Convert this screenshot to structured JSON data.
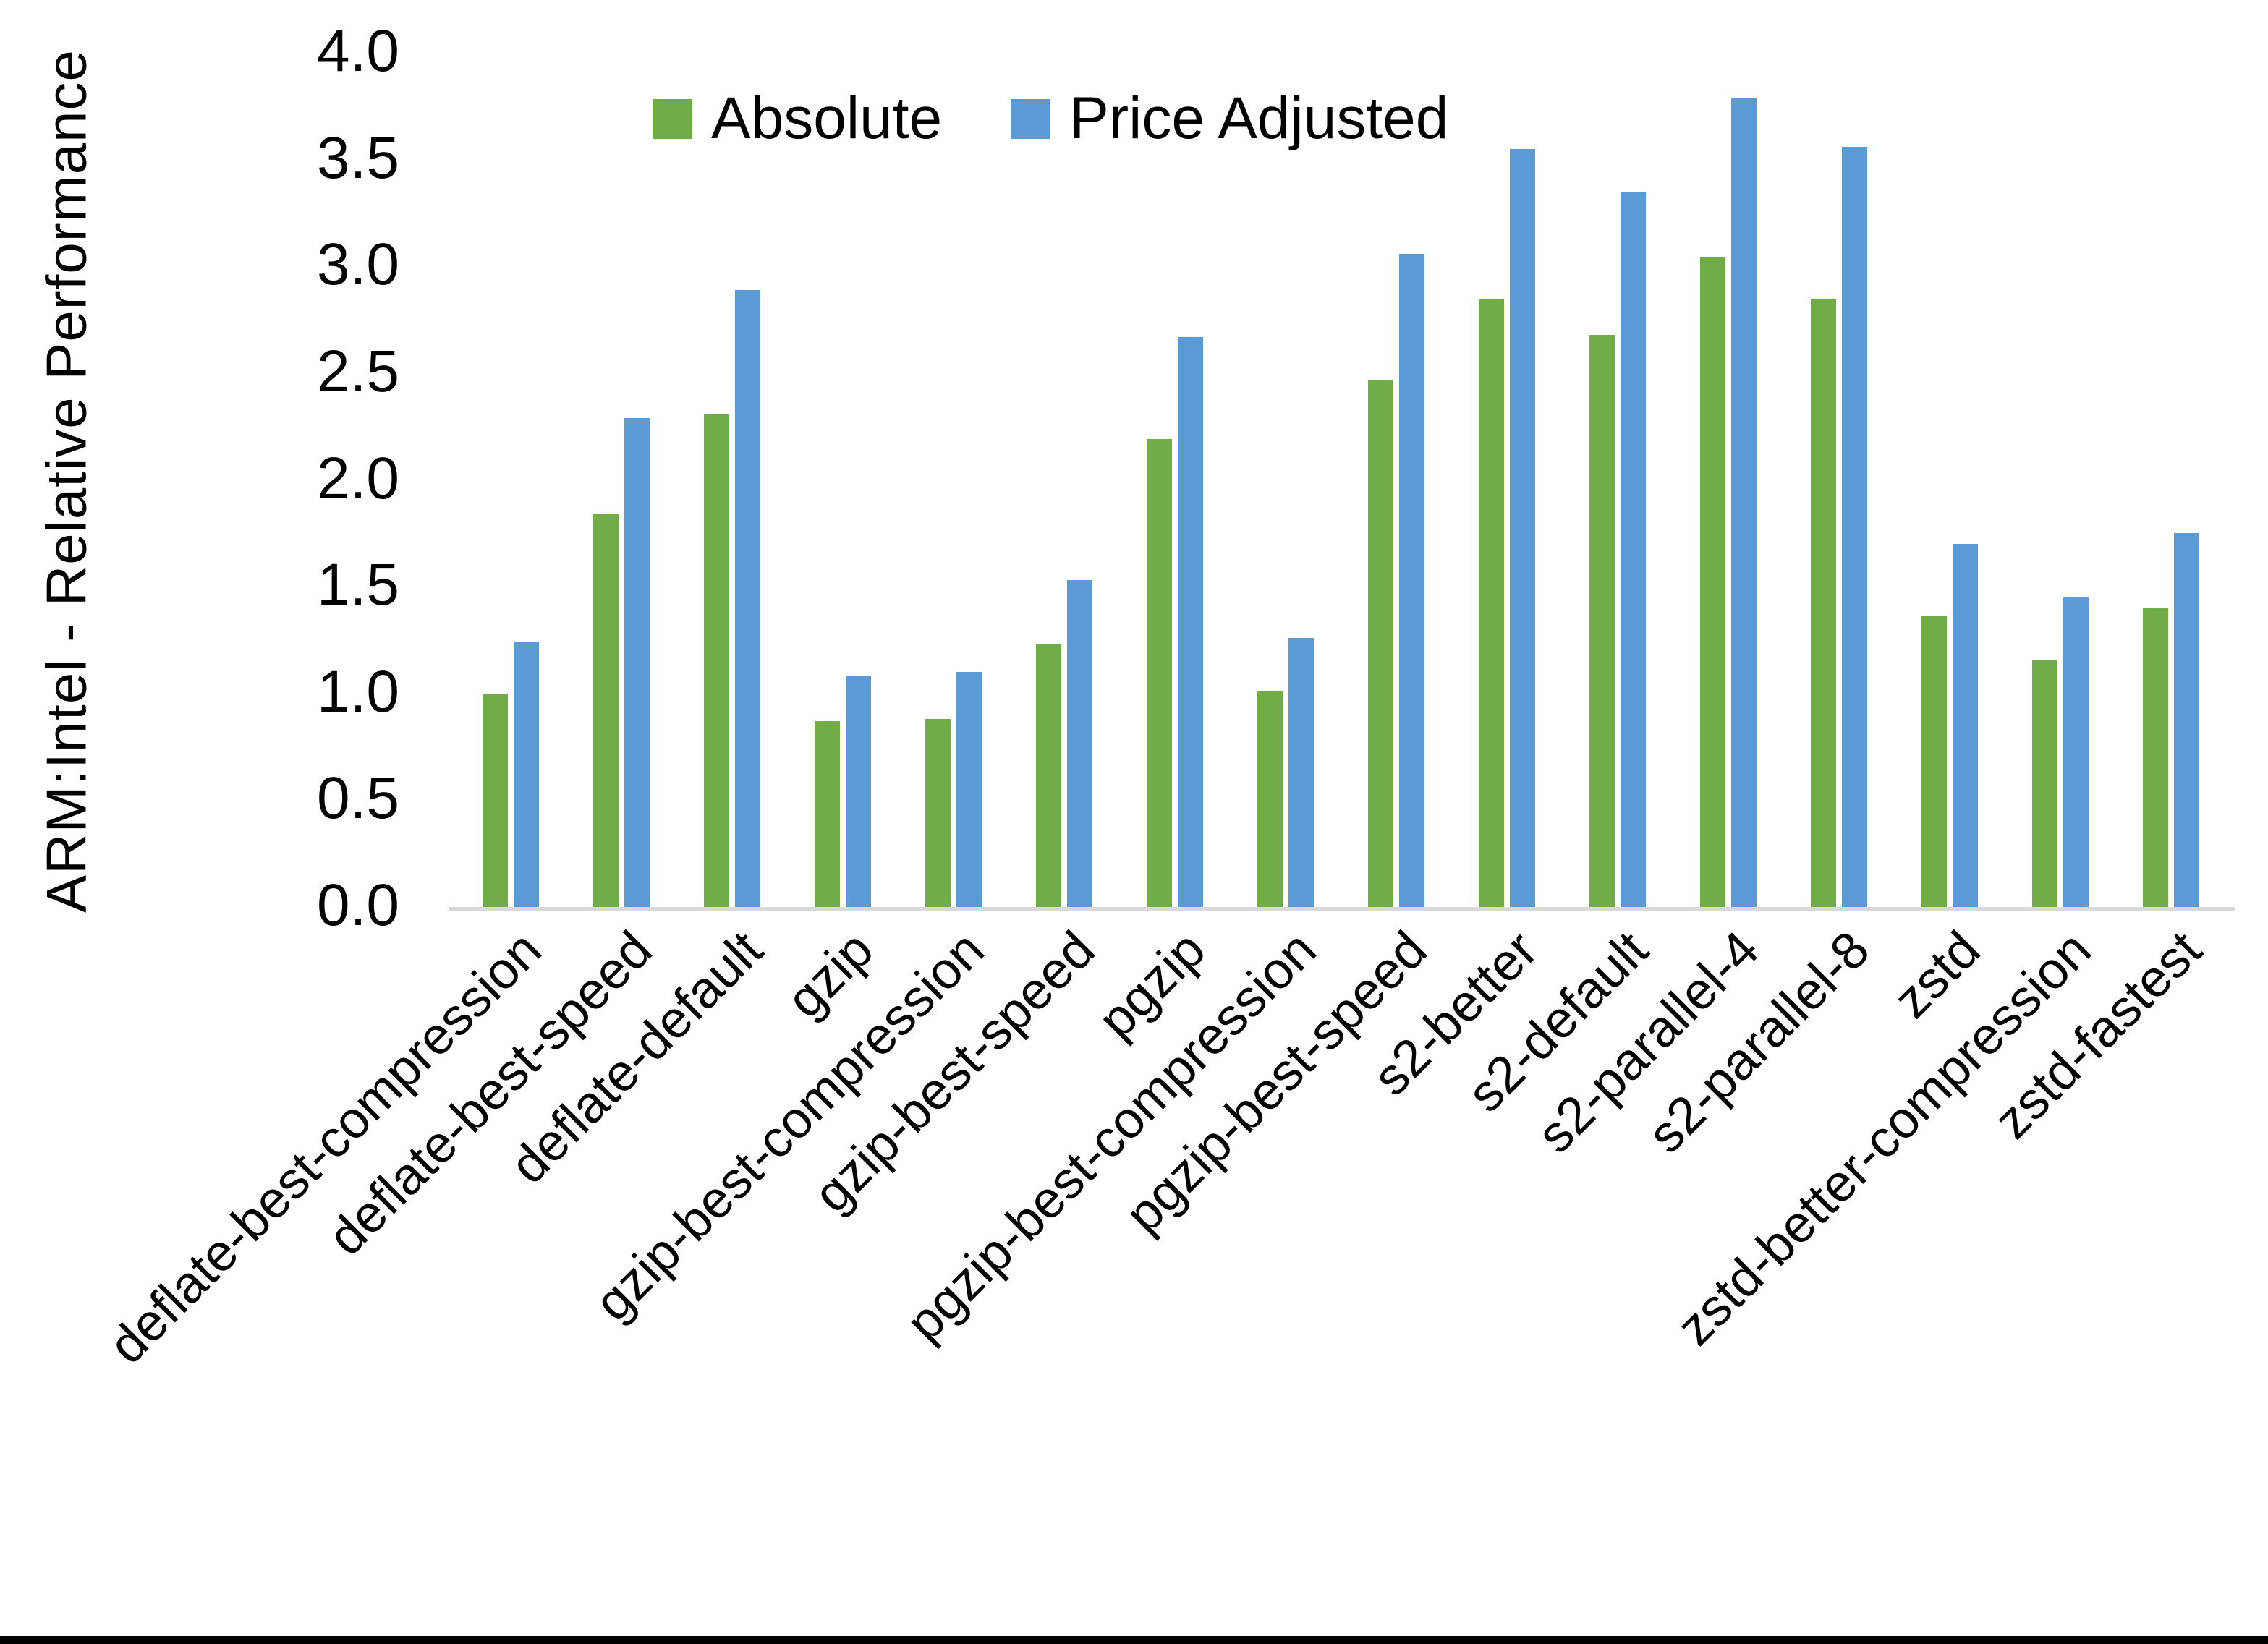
{
  "page": {
    "background": "#ffffff",
    "bottom_border_color": "#000000",
    "axis_line_color": "#d9d9d9"
  },
  "y_axis": {
    "title": "ARM:Intel - Relative Performance",
    "tick_labels": [
      "0.0",
      "0.5",
      "1.0",
      "1.5",
      "2.0",
      "2.5",
      "3.0",
      "3.5",
      "4.0"
    ]
  },
  "legend": {
    "items": [
      {
        "label": "Absolute",
        "color": "#70AD47"
      },
      {
        "label": "Price Adjusted",
        "color": "#5B9BD5"
      }
    ]
  },
  "chart_data": {
    "type": "bar",
    "title": "",
    "xlabel": "",
    "ylabel": "ARM:Intel - Relative Performance",
    "ylim": [
      0,
      4
    ],
    "ytick_step": 0.5,
    "grid": false,
    "legend_position": "top-center",
    "categories": [
      "deflate-best-compression",
      "deflate-best-speed",
      "deflate-default",
      "gzip",
      "gzip-best-compression",
      "gzip-best-speed",
      "pgzip",
      "pgzip-best-compression",
      "pgzip-best-speed",
      "s2-better",
      "s2-default",
      "s2-parallel-4",
      "s2-parallel-8",
      "zstd",
      "zstd-better-compression",
      "zstd-fastest"
    ],
    "series": [
      {
        "name": "Absolute",
        "color": "#70AD47",
        "values": [
          1.0,
          1.84,
          2.31,
          0.87,
          0.88,
          1.23,
          2.19,
          1.01,
          2.47,
          2.85,
          2.68,
          3.04,
          2.85,
          1.36,
          1.16,
          1.4
        ]
      },
      {
        "name": "Price Adjusted",
        "color": "#5B9BD5",
        "values": [
          1.24,
          2.29,
          2.89,
          1.08,
          1.1,
          1.53,
          2.67,
          1.26,
          3.06,
          3.55,
          3.35,
          3.79,
          3.56,
          1.7,
          1.45,
          1.75
        ]
      }
    ]
  }
}
